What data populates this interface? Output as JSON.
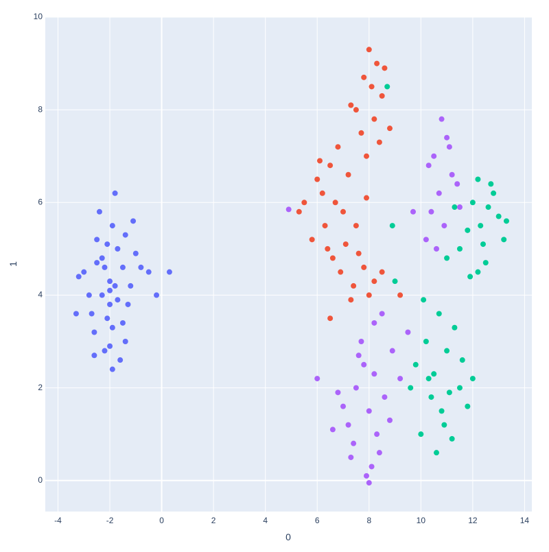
{
  "chart_data": {
    "type": "scatter",
    "x_label": "0",
    "y_label": "1",
    "xlim": [
      -4.49,
      14.28
    ],
    "ylim": [
      -0.67,
      10
    ],
    "xticks": [
      -4,
      -2,
      0,
      2,
      4,
      6,
      8,
      10,
      12,
      14
    ],
    "yticks": [
      0,
      2,
      4,
      6,
      8,
      10
    ],
    "grid": true,
    "series": [
      {
        "color": "#636efa",
        "x": [
          -2.0,
          -2.3,
          -1.7,
          -2.5,
          -1.5,
          -2.8,
          -1.2,
          -2.1,
          -1.9,
          -2.6,
          -1.4,
          -3.0,
          -1.0,
          -2.2,
          -1.8,
          -2.4,
          -1.6,
          -2.0,
          -2.7,
          -1.3,
          -3.2,
          -0.8,
          -2.1,
          -1.9,
          -2.3,
          -1.7,
          -2.0,
          -2.5,
          -1.5,
          -0.5,
          -3.3,
          -1.1,
          -2.2,
          -1.8,
          -2.0,
          -0.2,
          0.3,
          -2.6,
          -1.4,
          -1.9
        ],
        "y": [
          4.3,
          4.8,
          3.9,
          5.2,
          4.6,
          4.0,
          4.2,
          3.5,
          5.5,
          3.2,
          3.0,
          4.5,
          4.9,
          2.8,
          6.2,
          5.8,
          2.6,
          4.1,
          3.6,
          3.8,
          4.4,
          4.6,
          5.1,
          3.3,
          4.0,
          5.0,
          2.9,
          4.7,
          3.4,
          4.5,
          3.6,
          5.6,
          4.6,
          4.2,
          3.8,
          4.0,
          4.5,
          2.7,
          5.3,
          2.4
        ]
      },
      {
        "color": "#ef553b",
        "x": [
          8.0,
          8.3,
          7.8,
          8.5,
          7.5,
          8.2,
          7.7,
          8.6,
          8.1,
          7.9,
          7.3,
          8.4,
          6.5,
          6.0,
          5.5,
          6.8,
          7.2,
          6.3,
          5.8,
          7.0,
          6.6,
          7.5,
          7.8,
          6.2,
          7.4,
          8.0,
          6.9,
          5.3,
          6.4,
          7.1,
          7.6,
          8.2,
          6.7,
          7.3,
          8.8,
          9.2,
          6.1,
          7.9,
          8.5,
          6.5
        ],
        "y": [
          9.3,
          9.0,
          8.7,
          8.3,
          8.0,
          7.8,
          7.5,
          8.9,
          8.5,
          7.0,
          8.1,
          7.3,
          6.8,
          6.5,
          6.0,
          7.2,
          6.6,
          5.5,
          5.2,
          5.8,
          4.8,
          5.5,
          4.6,
          6.2,
          4.2,
          4.0,
          4.5,
          5.8,
          5.0,
          5.1,
          4.9,
          4.3,
          6.0,
          3.9,
          7.6,
          4.0,
          6.9,
          6.1,
          4.5,
          3.5
        ]
      },
      {
        "color": "#00cc96",
        "x": [
          10.5,
          10.8,
          10.2,
          11.0,
          11.5,
          10.0,
          11.8,
          10.7,
          9.8,
          11.2,
          10.4,
          11.6,
          10.1,
          10.9,
          9.6,
          11.3,
          10.6,
          12.0,
          10.3,
          11.1,
          12.3,
          12.8,
          12.0,
          11.5,
          13.0,
          12.5,
          11.8,
          13.2,
          12.2,
          11.3,
          12.7,
          11.0,
          12.4,
          11.9,
          13.3,
          12.6,
          8.7,
          8.9,
          12.2,
          9.0
        ],
        "y": [
          2.3,
          1.5,
          3.0,
          2.8,
          2.0,
          1.0,
          1.6,
          3.6,
          2.5,
          0.9,
          1.8,
          2.6,
          3.9,
          1.2,
          2.0,
          3.3,
          0.6,
          2.2,
          2.2,
          1.9,
          5.5,
          6.2,
          6.0,
          5.0,
          5.7,
          4.7,
          5.4,
          5.2,
          4.5,
          5.9,
          6.4,
          4.8,
          5.1,
          4.4,
          5.6,
          5.9,
          8.5,
          5.5,
          6.5,
          4.3
        ]
      },
      {
        "color": "#ab63fa",
        "x": [
          8.0,
          7.5,
          8.3,
          7.8,
          8.6,
          7.2,
          8.9,
          7.0,
          8.1,
          7.7,
          8.4,
          7.4,
          9.2,
          6.8,
          8.2,
          7.9,
          8.5,
          7.6,
          8.8,
          8.0,
          6.6,
          9.5,
          8.2,
          7.3,
          10.8,
          11.0,
          10.5,
          11.2,
          10.7,
          10.3,
          11.5,
          10.9,
          10.6,
          11.1,
          10.4,
          11.4,
          10.2,
          6.0,
          9.7,
          4.9
        ],
        "y": [
          1.5,
          2.0,
          1.0,
          2.5,
          1.8,
          1.2,
          2.8,
          1.6,
          0.3,
          3.0,
          0.6,
          0.8,
          2.2,
          1.9,
          3.4,
          0.1,
          3.6,
          2.7,
          1.3,
          -0.05,
          1.1,
          3.2,
          2.3,
          0.5,
          7.8,
          7.4,
          7.0,
          6.6,
          6.2,
          6.8,
          5.9,
          5.5,
          5.0,
          7.2,
          5.8,
          6.4,
          5.2,
          2.2,
          5.8,
          5.85
        ]
      }
    ]
  }
}
